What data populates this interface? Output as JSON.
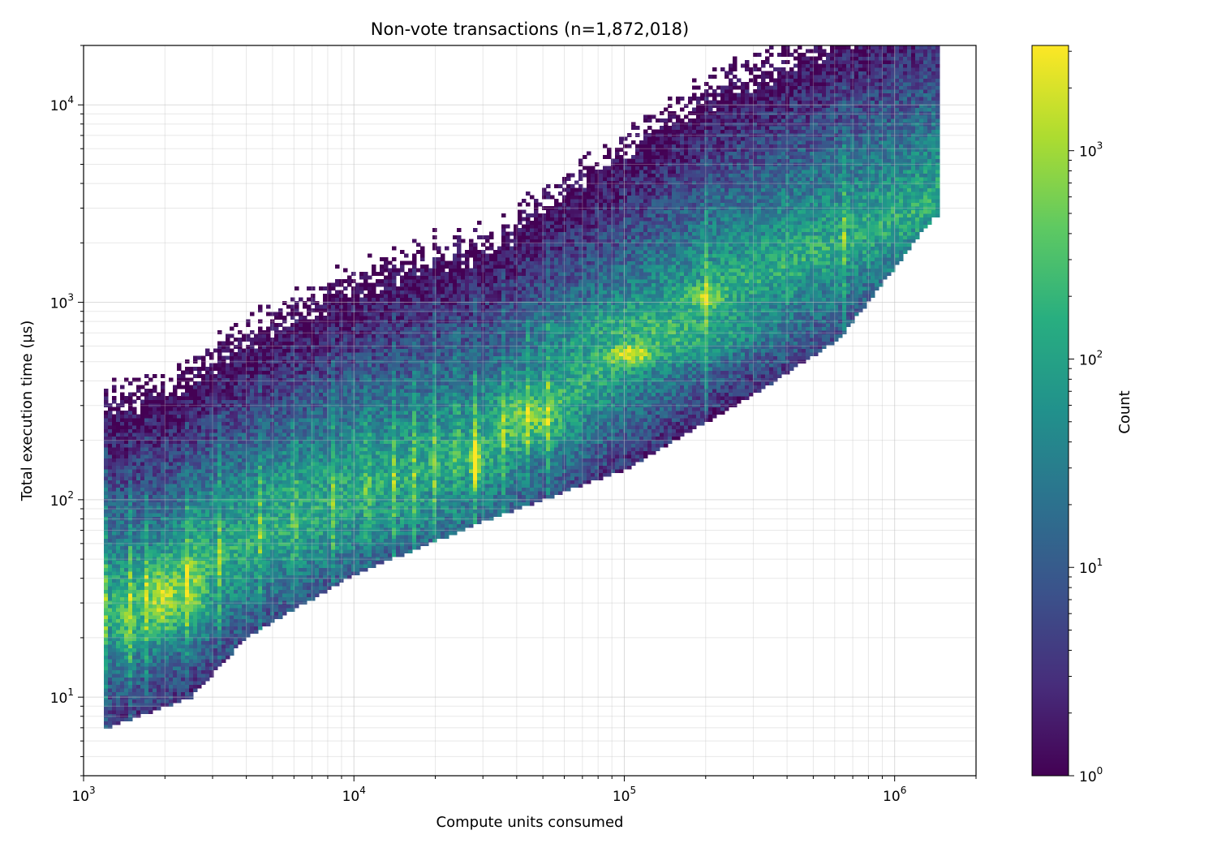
{
  "chart_data": {
    "type": "heatmap",
    "title": "Non-vote transactions (n=1,872,018)",
    "xlabel": "Compute units consumed",
    "ylabel": "Total execution time (µs)",
    "xscale": "log",
    "yscale": "log",
    "xlim": [
      1000,
      2000000
    ],
    "ylim": [
      4,
      20000
    ],
    "x_ticks": [
      {
        "value": 1000,
        "base": "10",
        "exp": "3"
      },
      {
        "value": 10000,
        "base": "10",
        "exp": "4"
      },
      {
        "value": 100000,
        "base": "10",
        "exp": "5"
      },
      {
        "value": 1000000,
        "base": "10",
        "exp": "6"
      }
    ],
    "y_ticks": [
      {
        "value": 10,
        "base": "10",
        "exp": "1"
      },
      {
        "value": 100,
        "base": "10",
        "exp": "2"
      },
      {
        "value": 1000,
        "base": "10",
        "exp": "3"
      },
      {
        "value": 10000,
        "base": "10",
        "exp": "4"
      }
    ],
    "grid": true,
    "colormap": "viridis",
    "colorbar": {
      "label": "Count",
      "scale": "log",
      "range": [
        1,
        3200
      ],
      "ticks": [
        {
          "value": 1,
          "base": "10",
          "exp": "0"
        },
        {
          "value": 10,
          "base": "10",
          "exp": "1"
        },
        {
          "value": 100,
          "base": "10",
          "exp": "2"
        },
        {
          "value": 1000,
          "base": "10",
          "exp": "3"
        }
      ]
    },
    "density_ridge": [
      {
        "x": 1400,
        "y": 30,
        "count": 500
      },
      {
        "x": 2000,
        "y": 32,
        "count": 1200
      },
      {
        "x": 2500,
        "y": 40,
        "count": 900
      },
      {
        "x": 5000,
        "y": 70,
        "count": 200
      },
      {
        "x": 10000,
        "y": 110,
        "count": 150
      },
      {
        "x": 28000,
        "y": 150,
        "count": 3000
      },
      {
        "x": 45000,
        "y": 260,
        "count": 800
      },
      {
        "x": 100000,
        "y": 550,
        "count": 2500
      },
      {
        "x": 220000,
        "y": 1100,
        "count": 1500
      },
      {
        "x": 1000000,
        "y": 3000,
        "count": 40
      }
    ]
  }
}
